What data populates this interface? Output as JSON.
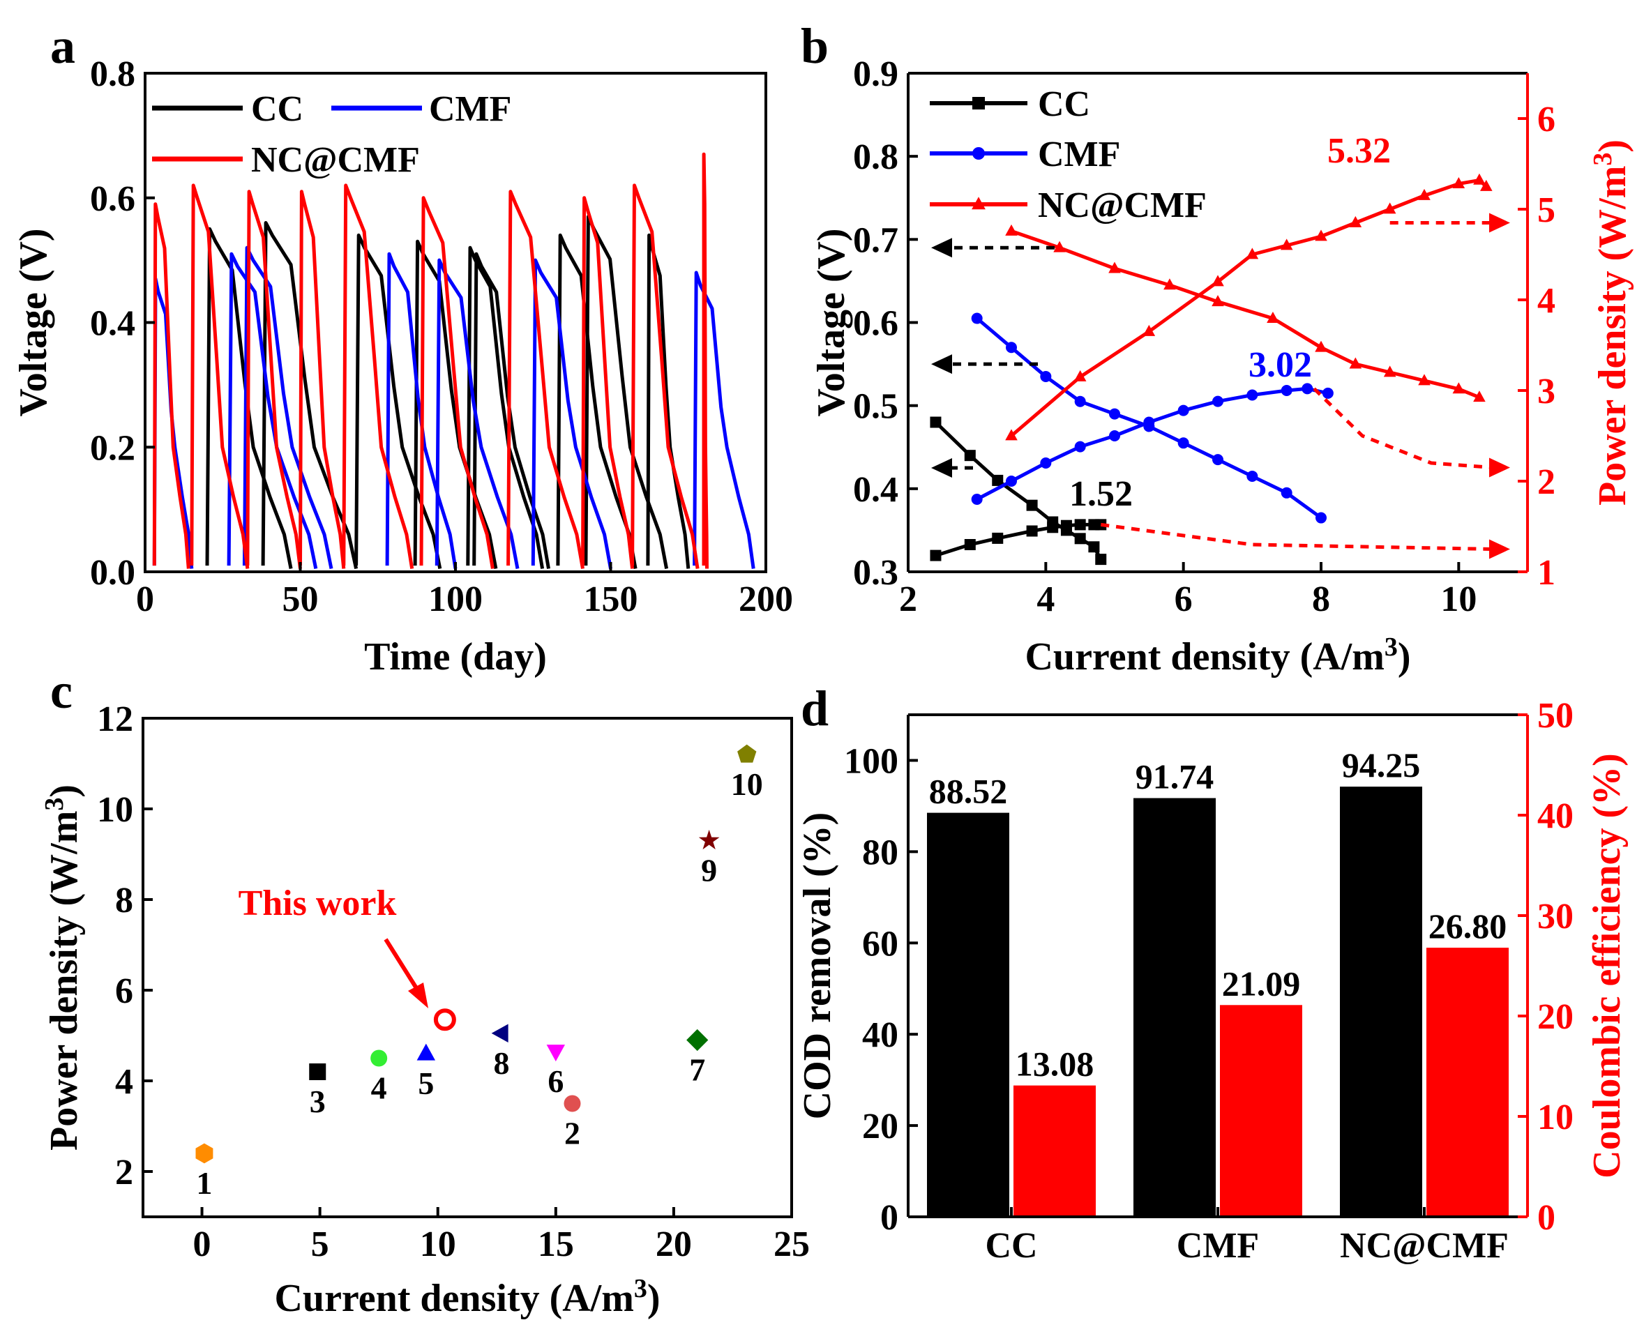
{
  "colors": {
    "black": "#000000",
    "blue": "#0000ff",
    "red": "#ff0000"
  },
  "chart_data": [
    {
      "panel": "a",
      "type": "line",
      "xlabel": "Time (day)",
      "ylabel": "Voltage (V)",
      "xlim": [
        0,
        200
      ],
      "ylim": [
        0,
        0.8
      ],
      "xticks": [
        "0",
        "50",
        "100",
        "150",
        "200"
      ],
      "yticks": [
        "0.0",
        "0.2",
        "0.4",
        "0.6",
        "0.8"
      ],
      "legend": [
        "CC",
        "CMF",
        "NC@CMF"
      ],
      "series": [
        {
          "name": "CC",
          "color": "#000000",
          "cycles": [
            {
              "start": 20,
              "end": 47,
              "peak": 0.55
            },
            {
              "start": 38,
              "end": 68,
              "peak": 0.56
            },
            {
              "start": 68,
              "end": 95,
              "peak": 0.54
            },
            {
              "start": 87,
              "end": 113,
              "peak": 0.53
            },
            {
              "start": 104,
              "end": 128,
              "peak": 0.52
            },
            {
              "start": 106,
              "end": 130,
              "peak": 0.51
            },
            {
              "start": 133,
              "end": 158,
              "peak": 0.54
            },
            {
              "start": 142,
              "end": 168,
              "peak": 0.57
            },
            {
              "start": 162,
              "end": 175,
              "peak": 0.54
            }
          ]
        },
        {
          "name": "CMF",
          "color": "#0000ff",
          "cycles": [
            {
              "start": 3,
              "end": 15,
              "peak": 0.47
            },
            {
              "start": 27,
              "end": 55,
              "peak": 0.51
            },
            {
              "start": 32,
              "end": 60,
              "peak": 0.52
            },
            {
              "start": 78,
              "end": 100,
              "peak": 0.51
            },
            {
              "start": 94,
              "end": 120,
              "peak": 0.5
            },
            {
              "start": 125,
              "end": 150,
              "peak": 0.5
            },
            {
              "start": 177,
              "end": 196,
              "peak": 0.48
            }
          ]
        },
        {
          "name": "NC@CMF",
          "color": "#ff0000",
          "cycles": [
            {
              "start": 3,
              "end": 14,
              "peak": 0.59
            },
            {
              "start": 15,
              "end": 33,
              "peak": 0.62
            },
            {
              "start": 33,
              "end": 50,
              "peak": 0.61
            },
            {
              "start": 50,
              "end": 64,
              "peak": 0.61
            },
            {
              "start": 64,
              "end": 86,
              "peak": 0.62
            },
            {
              "start": 89,
              "end": 112,
              "peak": 0.6
            },
            {
              "start": 117,
              "end": 141,
              "peak": 0.61
            },
            {
              "start": 141,
              "end": 157,
              "peak": 0.6
            },
            {
              "start": 157,
              "end": 178,
              "peak": 0.62
            },
            {
              "start": 180,
              "end": 181,
              "peak": 0.67
            }
          ]
        }
      ]
    },
    {
      "panel": "b",
      "type": "line",
      "xlabel": "Current density (A/m",
      "xlabel_sup": "3",
      "xlabel_end": ")",
      "ylabel": "Voltage (V)",
      "y2label": "Power density (W/m",
      "y2label_sup": "3",
      "y2label_end": ")",
      "xlim": [
        2,
        11
      ],
      "ylim": [
        0.3,
        0.9
      ],
      "y2lim": [
        1,
        6.5
      ],
      "xticks": [
        "2",
        "4",
        "6",
        "8",
        "10"
      ],
      "yticks": [
        "0.3",
        "0.4",
        "0.5",
        "0.6",
        "0.7",
        "0.8",
        "0.9"
      ],
      "y2ticks": [
        "1",
        "2",
        "3",
        "4",
        "5",
        "6"
      ],
      "legend": [
        "CC",
        "CMF",
        "NC@CMF"
      ],
      "annotations": [
        "1.52",
        "3.02",
        "5.32"
      ],
      "series": [
        {
          "name": "CC",
          "color": "#000000",
          "marker": "square",
          "voltage": {
            "x": [
              2.4,
              2.9,
              3.3,
              3.8,
              4.1,
              4.3,
              4.5,
              4.7,
              4.8
            ],
            "y": [
              0.48,
              0.44,
              0.41,
              0.38,
              0.36,
              0.35,
              0.34,
              0.33,
              0.315
            ]
          },
          "power": {
            "x": [
              2.4,
              2.9,
              3.3,
              3.8,
              4.1,
              4.3,
              4.5,
              4.7,
              4.8
            ],
            "y": [
              1.18,
              1.3,
              1.37,
              1.45,
              1.49,
              1.51,
              1.52,
              1.52,
              1.52
            ]
          }
        },
        {
          "name": "CMF",
          "color": "#0000ff",
          "marker": "circle",
          "voltage": {
            "x": [
              3.0,
              3.5,
              4.0,
              4.5,
              5.0,
              5.5,
              6.0,
              6.5,
              7.0,
              7.5,
              8.0
            ],
            "y": [
              0.605,
              0.57,
              0.535,
              0.505,
              0.49,
              0.475,
              0.455,
              0.435,
              0.415,
              0.395,
              0.365
            ]
          },
          "power": {
            "x": [
              3.0,
              3.5,
              4.0,
              4.5,
              5.0,
              5.5,
              6.0,
              6.5,
              7.0,
              7.5,
              7.8,
              8.1
            ],
            "y": [
              1.8,
              2.0,
              2.2,
              2.38,
              2.5,
              2.65,
              2.78,
              2.88,
              2.95,
              3.0,
              3.02,
              2.97
            ]
          }
        },
        {
          "name": "NC@CMF",
          "color": "#ff0000",
          "marker": "triangle",
          "voltage": {
            "x": [
              3.5,
              4.2,
              5.0,
              5.8,
              6.5,
              7.3,
              8.0,
              8.5,
              9.0,
              9.5,
              10.0,
              10.3
            ],
            "y": [
              0.71,
              0.69,
              0.665,
              0.645,
              0.625,
              0.605,
              0.57,
              0.55,
              0.54,
              0.53,
              0.52,
              0.51
            ]
          },
          "power": {
            "x": [
              3.5,
              4.5,
              5.5,
              6.5,
              7.0,
              7.5,
              8.0,
              8.5,
              9.0,
              9.5,
              10.0,
              10.3,
              10.4
            ],
            "y": [
              2.5,
              3.15,
              3.65,
              4.2,
              4.5,
              4.6,
              4.7,
              4.85,
              5.0,
              5.15,
              5.28,
              5.32,
              5.25
            ]
          }
        }
      ]
    },
    {
      "panel": "c",
      "type": "scatter",
      "xlabel": "Current density (A/m",
      "xlabel_sup": "3",
      "xlabel_end": ")",
      "ylabel": "Power density (W/m",
      "ylabel_sup": "3",
      "ylabel_end": ")",
      "xlim": [
        -2.5,
        25
      ],
      "ylim": [
        1,
        12
      ],
      "xticks": [
        "0",
        "5",
        "10",
        "15",
        "20",
        "25"
      ],
      "yticks": [
        "2",
        "4",
        "6",
        "8",
        "10",
        "12"
      ],
      "annotation": "This work",
      "points": [
        {
          "label": "1",
          "x": 0.1,
          "y": 2.4,
          "marker": "hexagon",
          "color": "#ff8c00"
        },
        {
          "label": "2",
          "x": 15.7,
          "y": 3.5,
          "marker": "circle",
          "color": "#e05050"
        },
        {
          "label": "3",
          "x": 4.9,
          "y": 4.2,
          "marker": "square",
          "color": "#000000"
        },
        {
          "label": "4",
          "x": 7.5,
          "y": 4.5,
          "marker": "circle",
          "color": "#33ee33"
        },
        {
          "label": "5",
          "x": 9.5,
          "y": 4.6,
          "marker": "triangle-up",
          "color": "#0000ff"
        },
        {
          "label": "6",
          "x": 15.0,
          "y": 4.65,
          "marker": "triangle-down",
          "color": "#ff00ff"
        },
        {
          "label": "7",
          "x": 21.0,
          "y": 4.9,
          "marker": "diamond",
          "color": "#007000"
        },
        {
          "label": "8",
          "x": 12.7,
          "y": 5.05,
          "marker": "triangle-left",
          "color": "#000080"
        },
        {
          "label": "9",
          "x": 21.5,
          "y": 9.3,
          "marker": "star",
          "color": "#800000"
        },
        {
          "label": "10",
          "x": 23.1,
          "y": 11.2,
          "marker": "pentagon",
          "color": "#808000"
        },
        {
          "label": "This work",
          "x": 10.3,
          "y": 5.35,
          "marker": "open-circle",
          "color": "#ff0000"
        }
      ]
    },
    {
      "panel": "d",
      "type": "bar",
      "categories": [
        "CC",
        "CMF",
        "NC@CMF"
      ],
      "ylabel": "COD removal (%)",
      "y2label": "Coulombic efficiency (%)",
      "ylim": [
        0,
        110
      ],
      "y2lim": [
        0,
        50
      ],
      "yticks": [
        "0",
        "20",
        "40",
        "60",
        "80",
        "100"
      ],
      "y2ticks": [
        "0",
        "10",
        "20",
        "30",
        "40",
        "50"
      ],
      "series": [
        {
          "name": "COD removal",
          "color": "#000000",
          "values": [
            88.52,
            91.74,
            94.25
          ],
          "labels": [
            "88.52",
            "91.74",
            "94.25"
          ]
        },
        {
          "name": "Coulombic efficiency",
          "color": "#ff0000",
          "values": [
            13.08,
            21.09,
            26.8
          ],
          "labels": [
            "13.08",
            "21.09",
            "26.80"
          ]
        }
      ]
    }
  ],
  "panel_labels": [
    "a",
    "b",
    "c",
    "d"
  ]
}
